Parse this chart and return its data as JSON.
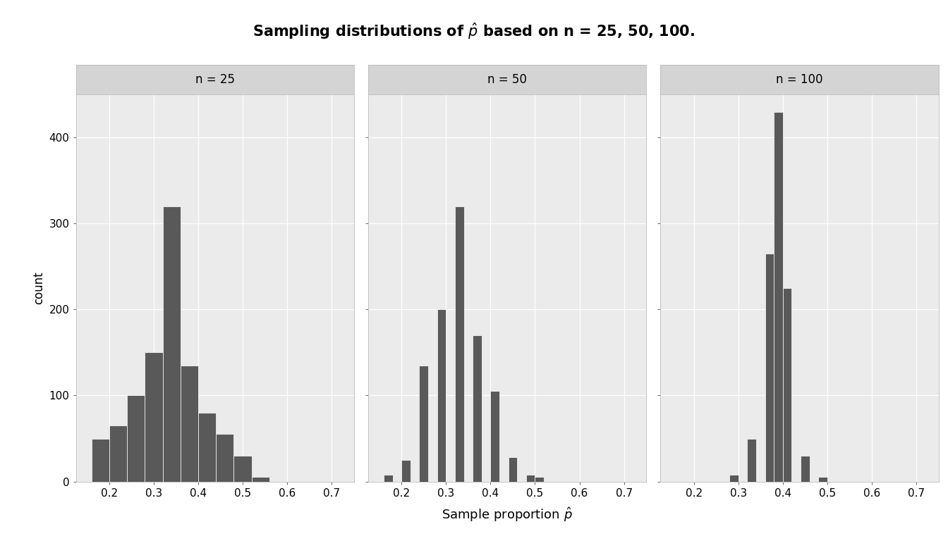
{
  "title": "Sampling distributions of $\\hat{p}$ based on n = 25, 50, 100.",
  "xlabel": "Sample proportion $\\hat{p}$",
  "ylabel": "count",
  "bar_color": "#595959",
  "bar_edgecolor": "white",
  "plot_bg": "#EBEBEB",
  "strip_bg": "#D4D4D4",
  "fig_bg": "#EBEBEB",
  "ylim": [
    0,
    450
  ],
  "yticks": [
    0,
    100,
    200,
    300,
    400
  ],
  "xlim": [
    0.125,
    0.75
  ],
  "xticks": [
    0.2,
    0.3,
    0.4,
    0.5,
    0.6,
    0.7
  ],
  "panels": [
    {
      "label": "n = 25",
      "bin_left": [
        0.16,
        0.2,
        0.24,
        0.28,
        0.32,
        0.36,
        0.4,
        0.44,
        0.48,
        0.52,
        0.56,
        0.6
      ],
      "counts": [
        50,
        65,
        100,
        150,
        320,
        135,
        80,
        55,
        30,
        5,
        0,
        0
      ],
      "bin_width": 0.04
    },
    {
      "label": "n = 50",
      "bin_left": [
        0.16,
        0.18,
        0.2,
        0.22,
        0.24,
        0.26,
        0.28,
        0.3,
        0.32,
        0.34,
        0.36,
        0.38,
        0.4,
        0.42,
        0.44,
        0.46,
        0.48,
        0.5,
        0.52,
        0.54
      ],
      "counts": [
        8,
        0,
        25,
        0,
        135,
        0,
        200,
        0,
        320,
        0,
        170,
        0,
        105,
        0,
        28,
        0,
        8,
        5,
        0,
        0
      ],
      "bin_width": 0.02
    },
    {
      "label": "n = 100",
      "bin_left": [
        0.28,
        0.3,
        0.32,
        0.34,
        0.36,
        0.38,
        0.4,
        0.42,
        0.44,
        0.46,
        0.48,
        0.5
      ],
      "counts": [
        8,
        0,
        50,
        0,
        265,
        430,
        225,
        0,
        30,
        0,
        5,
        0
      ],
      "bin_width": 0.02
    }
  ]
}
